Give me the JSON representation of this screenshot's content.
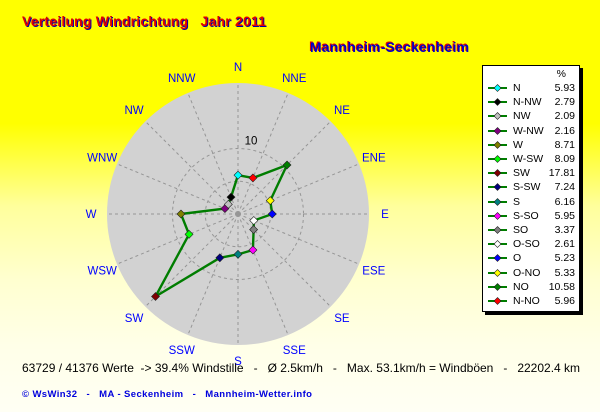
{
  "titles": {
    "main": "Verteilung Windrichtung   Jahr 2011",
    "station": "Mannheim-Seckenheim"
  },
  "chart_data": {
    "type": "radar",
    "title": "Verteilung Windrichtung Jahr 2011",
    "units": "%",
    "max_value": 20,
    "grid_circles": [
      5,
      10
    ],
    "grid_label": "10",
    "grid_label_value": 10,
    "directions": [
      {
        "compass": "N",
        "name": "N",
        "value": 5.93,
        "color": "#00ffff"
      },
      {
        "compass": "NNE",
        "name": "N-NO",
        "value": 5.96,
        "color": "#ff0000"
      },
      {
        "compass": "NE",
        "name": "NO",
        "value": 10.58,
        "color": "#008000"
      },
      {
        "compass": "ENE",
        "name": "O-NO",
        "value": 5.33,
        "color": "#ffff00"
      },
      {
        "compass": "E",
        "name": "O",
        "value": 5.23,
        "color": "#0000ff"
      },
      {
        "compass": "ESE",
        "name": "O-SO",
        "value": 2.61,
        "color": "#ffffff"
      },
      {
        "compass": "SE",
        "name": "SO",
        "value": 3.37,
        "color": "#808080"
      },
      {
        "compass": "SSE",
        "name": "S-SO",
        "value": 5.95,
        "color": "#ff00ff"
      },
      {
        "compass": "S",
        "name": "S",
        "value": 6.16,
        "color": "#008080"
      },
      {
        "compass": "SSW",
        "name": "S-SW",
        "value": 7.24,
        "color": "#000080"
      },
      {
        "compass": "SW",
        "name": "SW",
        "value": 17.81,
        "color": "#800000"
      },
      {
        "compass": "WSW",
        "name": "W-SW",
        "value": 8.09,
        "color": "#00ff00"
      },
      {
        "compass": "W",
        "name": "W",
        "value": 8.71,
        "color": "#808000"
      },
      {
        "compass": "WNW",
        "name": "W-NW",
        "value": 2.16,
        "color": "#800080"
      },
      {
        "compass": "NW",
        "name": "NW",
        "value": 2.09,
        "color": "#c0c0c0"
      },
      {
        "compass": "NNW",
        "name": "N-NW",
        "value": 2.79,
        "color": "#000000"
      }
    ]
  },
  "legend": {
    "header": "%",
    "order": [
      "N",
      "N-NW",
      "NW",
      "W-NW",
      "W",
      "W-SW",
      "SW",
      "S-SW",
      "S",
      "S-SO",
      "SO",
      "O-SO",
      "O",
      "O-NO",
      "NO",
      "N-NO"
    ]
  },
  "stats_line": "63729 / 41376 Werte  -> 39.4% Windstille   -   Ø 2.5km/h   -   Max. 53.1km/h = Windböen   -   22202.4 km",
  "copyright_line": "© WsWin32   -   MA - Seckenheim   -   Mannheim-Wetter.info",
  "colors": {
    "background_top": "#ffff00",
    "background_bottom": "#fffff4",
    "title_main": "#e00000",
    "title_main_shadow": "#0000a8",
    "title_station": "#0000c8",
    "title_station_shadow": "#e00000",
    "plot_area_fill": "#d2d2d2",
    "grid_line": "#969696",
    "polygon_line": "#007d00",
    "direction_label": "#0000ff",
    "grid_label": "#000000",
    "stats_text": "#000000",
    "copyright_text": "#0000dd",
    "legend_background": "#ffffff",
    "legend_border": "#000000"
  }
}
